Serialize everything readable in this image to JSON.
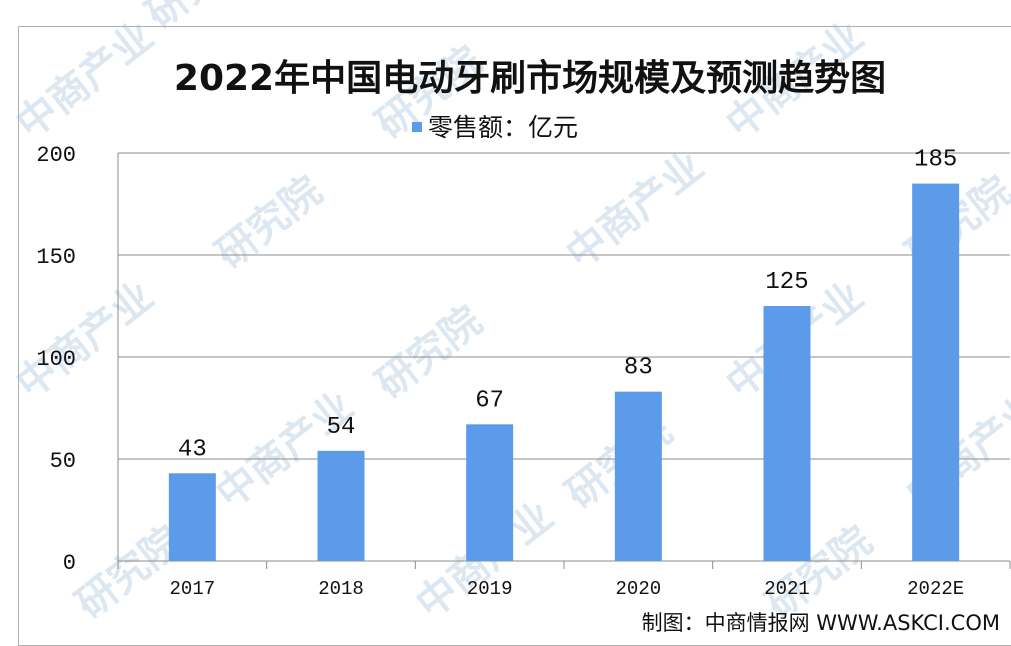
{
  "chart_data": {
    "type": "bar",
    "title": "2022年中国电动牙刷市场规模及预测趋势图",
    "legend": {
      "label": "零售额：亿元",
      "placement": "top-center",
      "color": "#5b9bea"
    },
    "categories": [
      "2017",
      "2018",
      "2019",
      "2020",
      "2021",
      "2022E"
    ],
    "series": [
      {
        "name": "零售额：亿元",
        "values": [
          43,
          54,
          67,
          83,
          125,
          185
        ],
        "data_labels": [
          "43",
          "54",
          "67",
          "83",
          "125",
          "185"
        ],
        "color": "#5b9bea"
      }
    ],
    "y_ticks": [
      "0",
      "50",
      "100",
      "150",
      "200"
    ],
    "ylim": [
      0,
      200
    ],
    "grid": true,
    "xlabel": "",
    "ylabel": ""
  },
  "source": "制图：中商情报网 WWW.ASKCI.COM",
  "watermark": {
    "text_top": "中商产业",
    "text_bottom": "研究院"
  }
}
